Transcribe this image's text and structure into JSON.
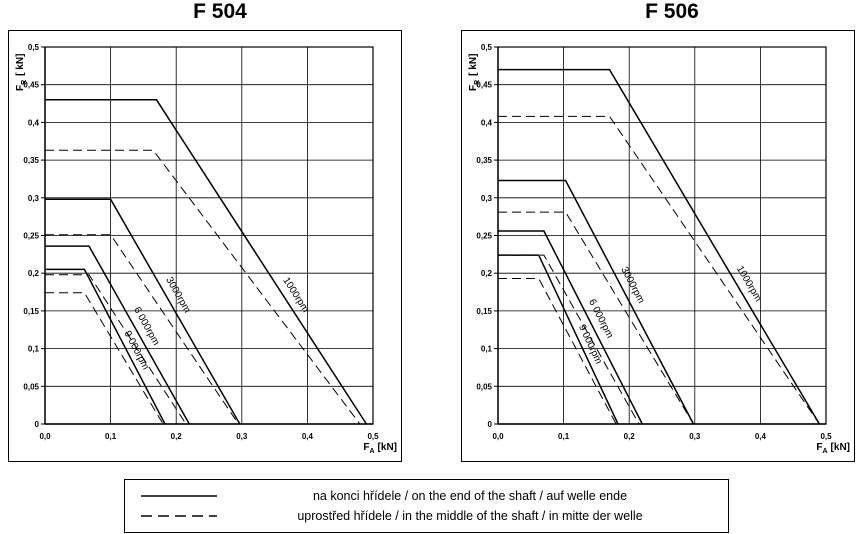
{
  "chart_data": [
    {
      "type": "line",
      "title": "F 504",
      "ylabel_main": "F",
      "ylabel_sub": "R",
      "ylabel_unit": "[ kN]",
      "xlabel_main": "F",
      "xlabel_sub": "A",
      "xlabel_unit": "[kN]",
      "xlim": [
        0,
        0.5
      ],
      "ylim": [
        0,
        0.5
      ],
      "x_ticks": [
        "0,0",
        "0,1",
        "0,2",
        "0,3",
        "0,4",
        "0,5"
      ],
      "y_ticks": [
        "0",
        "0,05",
        "0,1",
        "0,15",
        "0,2",
        "0,25",
        "0,3",
        "0,35",
        "0,4",
        "0,45",
        "0,5"
      ],
      "grid": true,
      "series": [
        {
          "name": "1000rpm",
          "style": "solid",
          "x": [
            0,
            0.17,
            0.49
          ],
          "y": [
            0.43,
            0.43,
            0
          ]
        },
        {
          "name": "1000rpm",
          "style": "dashed",
          "x": [
            0,
            0.165,
            0.48
          ],
          "y": [
            0.363,
            0.363,
            0
          ]
        },
        {
          "name": "3000rpm",
          "style": "solid",
          "x": [
            0,
            0.1,
            0.297
          ],
          "y": [
            0.298,
            0.298,
            0
          ]
        },
        {
          "name": "3000rpm",
          "style": "dashed",
          "x": [
            0,
            0.1,
            0.295
          ],
          "y": [
            0.251,
            0.251,
            0
          ]
        },
        {
          "name": "6 000rpm",
          "style": "solid",
          "x": [
            0,
            0.067,
            0.22
          ],
          "y": [
            0.236,
            0.236,
            0
          ]
        },
        {
          "name": "6 000rpm",
          "style": "dashed",
          "x": [
            0,
            0.067,
            0.215
          ],
          "y": [
            0.198,
            0.198,
            0
          ]
        },
        {
          "name": "9 000rpm",
          "style": "solid",
          "x": [
            0,
            0.06,
            0.183
          ],
          "y": [
            0.205,
            0.205,
            0
          ]
        },
        {
          "name": "9 000rpm",
          "style": "dashed",
          "x": [
            0,
            0.06,
            0.18
          ],
          "y": [
            0.174,
            0.174,
            0
          ]
        }
      ],
      "annotations": [
        "1000rpm",
        "3000rpm",
        "6 000rpm",
        "9 000rpm"
      ]
    },
    {
      "type": "line",
      "title": "F 506",
      "ylabel_main": "F",
      "ylabel_sub": "R",
      "ylabel_unit": "[ kN]",
      "xlabel_main": "F",
      "xlabel_sub": "A",
      "xlabel_unit": "[kN]",
      "xlim": [
        0,
        0.5
      ],
      "ylim": [
        0,
        0.5
      ],
      "x_ticks": [
        "0,0",
        "0,1",
        "0,2",
        "0,3",
        "0,4",
        "0,5"
      ],
      "y_ticks": [
        "0",
        "0,05",
        "0,1",
        "0,15",
        "0,2",
        "0,25",
        "0,3",
        "0,35",
        "0,4",
        "0,45",
        "0,5"
      ],
      "grid": true,
      "series": [
        {
          "name": "1000rpm",
          "style": "solid",
          "x": [
            0,
            0.17,
            0.49
          ],
          "y": [
            0.47,
            0.47,
            0
          ]
        },
        {
          "name": "1000rpm",
          "style": "dashed",
          "x": [
            0,
            0.17,
            0.49
          ],
          "y": [
            0.408,
            0.408,
            0
          ]
        },
        {
          "name": "3000rpm",
          "style": "solid",
          "x": [
            0,
            0.103,
            0.298
          ],
          "y": [
            0.323,
            0.323,
            0
          ]
        },
        {
          "name": "3000rpm",
          "style": "dashed",
          "x": [
            0,
            0.103,
            0.298
          ],
          "y": [
            0.281,
            0.281,
            0
          ]
        },
        {
          "name": "6 000rpm",
          "style": "solid",
          "x": [
            0,
            0.07,
            0.22
          ],
          "y": [
            0.256,
            0.256,
            0
          ]
        },
        {
          "name": "6 000rpm",
          "style": "dashed",
          "x": [
            0,
            0.07,
            0.215
          ],
          "y": [
            0.224,
            0.224,
            0
          ]
        },
        {
          "name": "9 000rpm",
          "style": "solid",
          "x": [
            0,
            0.062,
            0.183
          ],
          "y": [
            0.224,
            0.224,
            0
          ]
        },
        {
          "name": "9 000rpm",
          "style": "dashed",
          "x": [
            0,
            0.062,
            0.18
          ],
          "y": [
            0.193,
            0.193,
            0
          ]
        }
      ],
      "annotations": [
        "1000rpm",
        "3000rpm",
        "6 000rpm",
        "9 000rpm"
      ]
    }
  ],
  "legend": {
    "solid_label": "na konci hřídele  /  on the end of the shaft  /  auf welle ende",
    "dashed_label": "uprostřed hřídele  /  in the middle of the shaft  /  in mitte der welle"
  }
}
